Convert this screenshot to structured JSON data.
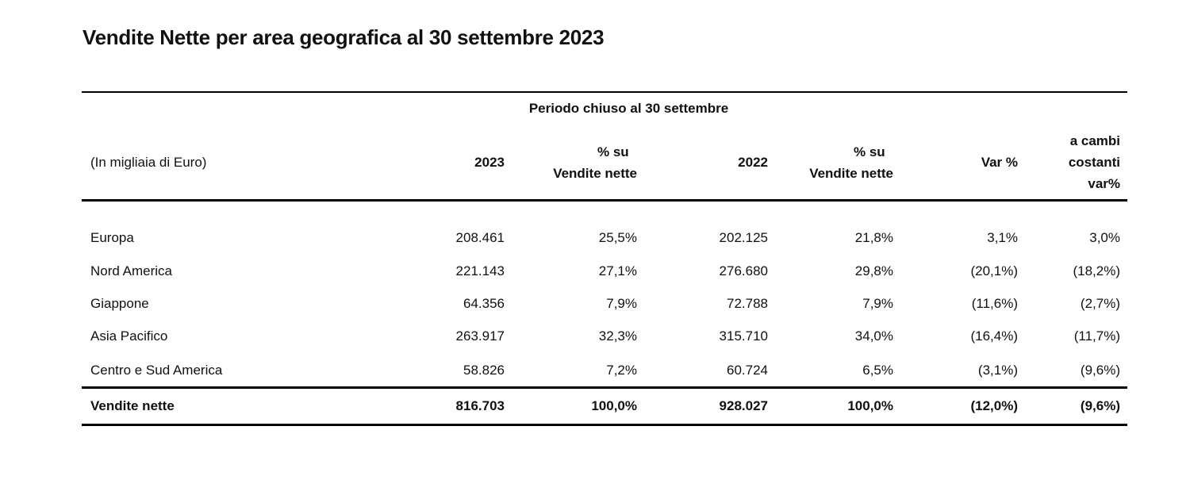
{
  "title": "Vendite Nette per area geografica al 30 settembre 2023",
  "table": {
    "period_label": "Periodo chiuso al 30 settembre",
    "unit_label": "(In migliaia di Euro)",
    "headers": {
      "y2023": "2023",
      "pct2023_line1": "% su",
      "pct2023_line2": "Vendite nette",
      "y2022": "2022",
      "pct2022_line1": "% su",
      "pct2022_line2": "Vendite nette",
      "var": "Var %",
      "cc_line1": "a cambi",
      "cc_line2": "costanti",
      "cc_line3": "var%"
    },
    "rows": [
      {
        "area": "Europa",
        "v2023": "208.461",
        "p2023": "25,5%",
        "v2022": "202.125",
        "p2022": "21,8%",
        "var": "3,1%",
        "cc": "3,0%"
      },
      {
        "area": "Nord America",
        "v2023": "221.143",
        "p2023": "27,1%",
        "v2022": "276.680",
        "p2022": "29,8%",
        "var": "(20,1%)",
        "cc": "(18,2%)"
      },
      {
        "area": "Giappone",
        "v2023": "64.356",
        "p2023": "7,9%",
        "v2022": "72.788",
        "p2022": "7,9%",
        "var": "(11,6%)",
        "cc": "(2,7%)"
      },
      {
        "area": "Asia Pacifico",
        "v2023": "263.917",
        "p2023": "32,3%",
        "v2022": "315.710",
        "p2022": "34,0%",
        "var": "(16,4%)",
        "cc": "(11,7%)"
      },
      {
        "area": "Centro e Sud America",
        "v2023": "58.826",
        "p2023": "7,2%",
        "v2022": "60.724",
        "p2022": "6,5%",
        "var": "(3,1%)",
        "cc": "(9,6%)"
      }
    ],
    "total": {
      "area": "Vendite nette",
      "v2023": "816.703",
      "p2023": "100,0%",
      "v2022": "928.027",
      "p2022": "100,0%",
      "var": "(12,0%)",
      "cc": "(9,6%)"
    }
  }
}
